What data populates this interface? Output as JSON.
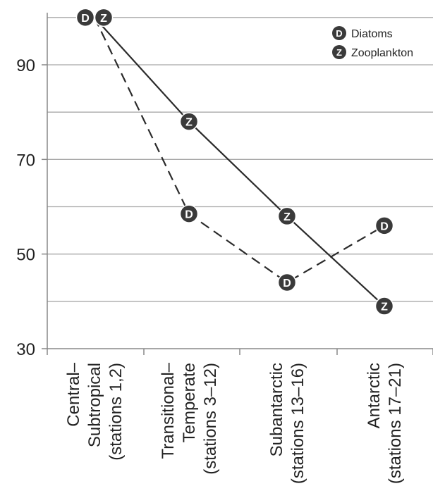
{
  "chart_data": {
    "type": "line",
    "categories": [
      [
        "Central–",
        "Subtropical",
        "(stations 1,2)"
      ],
      [
        "Transitional–",
        "Temperate",
        "(stations 3–12)"
      ],
      [
        "Subantarctic",
        "(stations 13–16)"
      ],
      [
        "Antarctic",
        "(stations 17–21)"
      ]
    ],
    "series": [
      {
        "name": "Diatoms",
        "marker_letter": "D",
        "line_style": "dashed",
        "values": [
          100,
          58.5,
          44,
          56
        ]
      },
      {
        "name": "Zooplankton",
        "marker_letter": "Z",
        "line_style": "solid",
        "values": [
          100,
          78,
          58,
          39
        ]
      }
    ],
    "yticks": [
      30,
      50,
      70,
      90
    ],
    "ylim": [
      30,
      101
    ],
    "grid": true,
    "legend_position": "top-right",
    "colors": {
      "line": "#2b2b2b",
      "marker_fill": "#3a3a3a",
      "marker_text": "#ffffff",
      "grid": "#a8a8a8",
      "axis": "#888888"
    }
  }
}
